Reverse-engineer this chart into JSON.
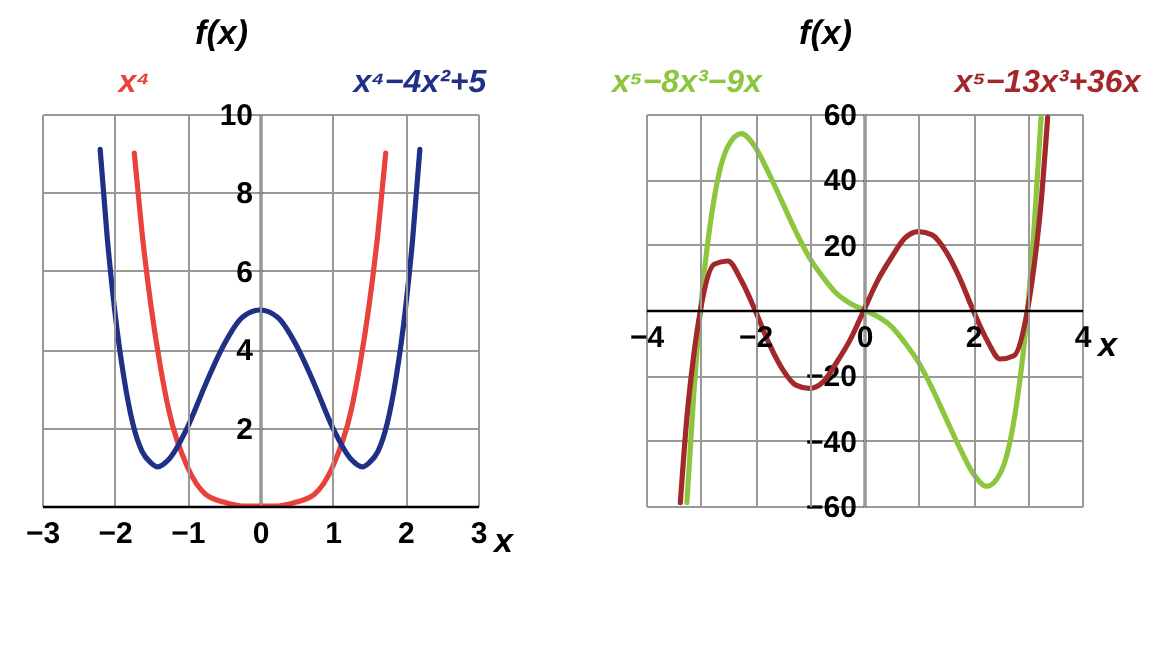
{
  "chart_data": [
    {
      "type": "line",
      "xlabel": "x",
      "ylabel": "f(x)",
      "xlim": [
        -3,
        3
      ],
      "ylim": [
        0,
        10
      ],
      "xticks": [
        -3,
        -2,
        -1,
        0,
        1,
        2,
        3
      ],
      "yticks": [
        2,
        4,
        6,
        8,
        10
      ],
      "grid": true,
      "legend": false,
      "marker": "none",
      "line_style": "solid",
      "series": [
        {
          "name": "x⁴",
          "color": "#e8423a",
          "x": [
            -1.73,
            -1.625,
            -1.5,
            -1.375,
            -1.25,
            -1,
            -0.75,
            -0.5,
            -0.25,
            0,
            0.25,
            0.5,
            0.75,
            1,
            1.25,
            1.375,
            1.5,
            1.625,
            1.73
          ],
          "values": [
            9.0,
            7.0,
            5.1,
            3.6,
            2.4,
            1.0,
            0.3,
            0.1,
            0,
            0,
            0,
            0.1,
            0.3,
            1.0,
            2.4,
            3.6,
            5.1,
            7.0,
            9.0
          ]
        },
        {
          "name": "x⁴−4x²+5",
          "color": "#1f3086",
          "x": [
            -2.2,
            -2.1,
            -2,
            -1.875,
            -1.75,
            -1.625,
            -1.5,
            -1.414,
            -1.25,
            -1,
            -0.75,
            -0.5,
            -0.25,
            0,
            0.25,
            0.5,
            0.75,
            1,
            1.25,
            1.414,
            1.5,
            1.625,
            1.75,
            1.875,
            2,
            2.1,
            2.2
          ],
          "values": [
            9.1,
            6.8,
            5,
            3.3,
            2.1,
            1.4,
            1.1,
            1,
            1.2,
            2,
            3.1,
            4.1,
            4.8,
            5,
            4.8,
            4.1,
            3.1,
            2,
            1.2,
            1,
            1.1,
            1.4,
            2.1,
            3.3,
            5,
            6.8,
            9.1
          ]
        }
      ]
    },
    {
      "type": "line",
      "xlabel": "x",
      "ylabel": "f(x)",
      "xlim": [
        -4,
        4
      ],
      "ylim": [
        -60,
        60
      ],
      "xticks": [
        -4,
        {
          "value": -3,
          "label": null
        },
        -2,
        {
          "value": -1,
          "label": null
        },
        0,
        {
          "value": 1,
          "label": null
        },
        2,
        {
          "value": 3,
          "label": null
        },
        4
      ],
      "yticks": [
        -60,
        -40,
        -20,
        {
          "value": 0,
          "label": null
        },
        20,
        40,
        60
      ],
      "grid": true,
      "legend": false,
      "marker": "none",
      "line_style": "solid",
      "series": [
        {
          "name": "x⁵−8x³−9x",
          "color": "#8cc63e",
          "x": [
            -3.25,
            -3.125,
            -3,
            -2.75,
            -2.5,
            -2.25,
            -2,
            -1.75,
            -1.5,
            -1.25,
            -1,
            -0.75,
            -0.5,
            -0.25,
            0,
            0.25,
            0.5,
            0.75,
            1,
            1.25,
            1.5,
            1.75,
            2,
            2.25,
            2.5,
            2.75,
            3,
            3.125,
            3.25
          ],
          "values": [
            -59,
            -26,
            0,
            34,
            50,
            54,
            50,
            42,
            33,
            24,
            16,
            10,
            5,
            2,
            0,
            -2,
            -5,
            -10,
            -16,
            -24,
            -33,
            -42,
            -50,
            -54,
            -50,
            -34,
            0,
            26,
            59
          ]
        },
        {
          "name": "x⁵−13x³+36x",
          "color": "#a3282b",
          "x": [
            -3.37,
            -3.25,
            -3.125,
            -3,
            -2.75,
            -2.5,
            -2.25,
            -2,
            -1.75,
            -1.5,
            -1.25,
            -1,
            -0.75,
            -0.5,
            -0.25,
            0,
            0.25,
            0.5,
            0.75,
            1,
            1.25,
            1.5,
            1.75,
            2,
            2.25,
            2.5,
            2.75,
            3,
            3.125,
            3.25,
            3.37
          ],
          "values": [
            -59,
            -33,
            -14,
            0,
            14,
            15,
            9,
            0,
            -10,
            -18,
            -23,
            -24,
            -22,
            -16,
            -9,
            0,
            9,
            16,
            22,
            24,
            23,
            18,
            10,
            0,
            -9,
            -15,
            -14,
            0,
            14,
            33,
            59
          ]
        }
      ]
    }
  ]
}
